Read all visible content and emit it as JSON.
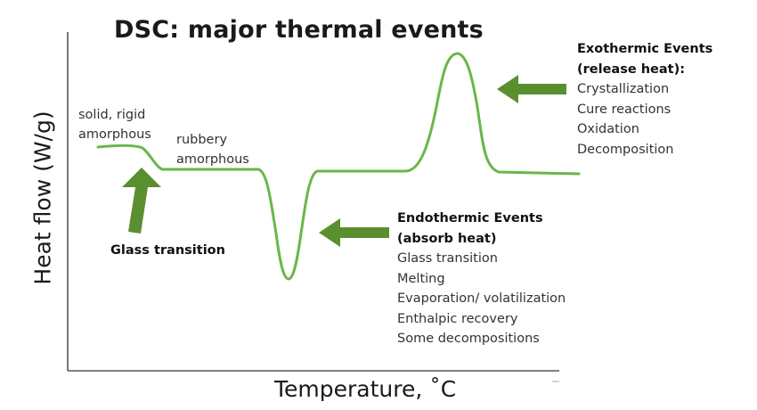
{
  "title": "DSC: major thermal events",
  "axes": {
    "ylabel": "Heat flow (W/g)",
    "xlabel": "Temperature, ˚C"
  },
  "curve_color": "#6ab64a",
  "arrow_color": "#5a8f2f",
  "regions": {
    "solid": [
      "solid, rigid",
      "amorphous"
    ],
    "rubbery": [
      "rubbery",
      "amorphous"
    ]
  },
  "glass_transition_label": "Glass transition",
  "exothermic": {
    "heading": [
      "Exothermic Events",
      "(release heat):"
    ],
    "items": [
      "Crystallization",
      "Cure reactions",
      "Oxidation",
      "Decomposition"
    ]
  },
  "endothermic": {
    "heading": [
      "Endothermic Events",
      "(absorb heat)"
    ],
    "items": [
      "Glass transition",
      "Melting",
      "Evaporation/ volatilization",
      "Enthalpic recovery",
      "Some decompositions"
    ]
  }
}
